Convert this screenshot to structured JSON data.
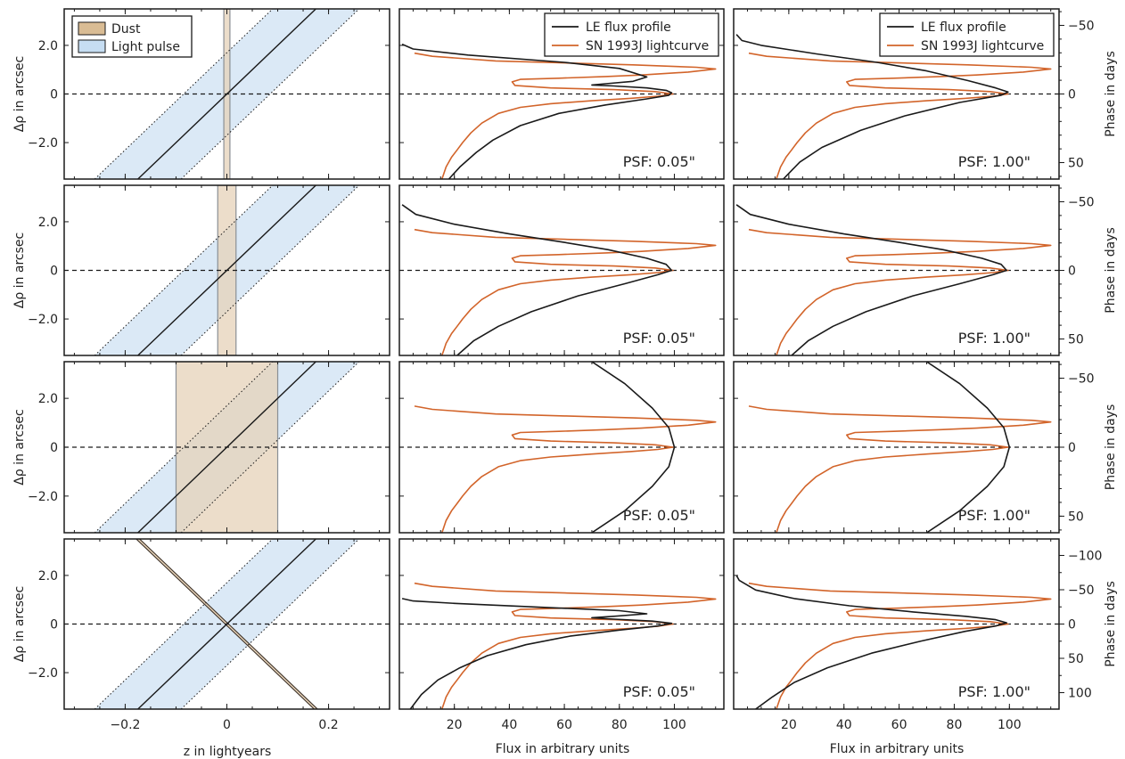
{
  "colors": {
    "dust_fill": "#e6d2b8",
    "dust_stroke": "#8a8f95",
    "pulse_fill": "#dbe9f6",
    "le_profile": "#1a1a1a",
    "lightcurve": "#d2642a",
    "axis": "#1a1a1a"
  },
  "labels": {
    "dy_left": "Δρ in arcsec",
    "phase_right": "Phase in days",
    "x_left": "z in lightyears",
    "x_mid": "Flux in arbitrary units",
    "x_right": "Flux in arbitrary units"
  },
  "legend_left": {
    "dust": "Dust",
    "light_pulse": "Light pulse"
  },
  "legend_right": {
    "le": "LE flux profile",
    "sn": "SN 1993J lightcurve"
  },
  "psf_labels": [
    "PSF: 0.05\"",
    "PSF: 1.00\""
  ],
  "chart_data": {
    "type": "line",
    "layout": "4 rows x 3 columns",
    "left_panels": {
      "xlabel": "z in lightyears",
      "ylabel": "Δρ in arcsec",
      "xlim": [
        -0.32,
        0.32
      ],
      "ylim": [
        -3.5,
        3.5
      ],
      "xticks": [
        -0.2,
        0,
        0.2
      ],
      "xtick_labels": [
        "−0.2",
        "0",
        "0.2"
      ],
      "yticks": [
        2.0,
        0,
        -2.0
      ],
      "ytick_labels": [
        "2.0",
        "0",
        "−2.0"
      ],
      "light_pulse": {
        "center_line": "Δρ = 20 z",
        "band_halfwidth_z": 0.085
      },
      "dust_layers": [
        {
          "row": 1,
          "z_min": -0.006,
          "z_max": 0.006,
          "orientation": "vertical"
        },
        {
          "row": 2,
          "z_min": -0.018,
          "z_max": 0.018,
          "orientation": "vertical"
        },
        {
          "row": 3,
          "z_min": -0.1,
          "z_max": 0.1,
          "orientation": "vertical"
        },
        {
          "row": 4,
          "line": "Δρ = −20 z",
          "orientation": "inclined"
        }
      ]
    },
    "flux_panels": {
      "xlabel": "Flux in arbitrary units",
      "xlim": [
        0,
        118
      ],
      "xticks": [
        20,
        40,
        60,
        80,
        100
      ],
      "xtick_labels": [
        "20",
        "40",
        "60",
        "80",
        "100"
      ],
      "ylim": [
        -3.5,
        3.5
      ],
      "phase_ticks_rows_1_3": [
        -50,
        0,
        50
      ],
      "phase_tick_labels_rows_1_3": [
        "−50",
        "0",
        "50"
      ],
      "phase_ticks_row_4": [
        -100,
        -50,
        0,
        50,
        100
      ],
      "phase_tick_labels_row_4": [
        "−100",
        "−50",
        "0",
        "50",
        "100"
      ],
      "series": [
        {
          "name": "SN 1993J lightcurve",
          "points": [
            [
              15.5,
              -3.5
            ],
            [
              17,
              -3.0
            ],
            [
              19,
              -2.6
            ],
            [
              21,
              -2.3
            ],
            [
              23,
              -2.0
            ],
            [
              26,
              -1.6
            ],
            [
              30,
              -1.2
            ],
            [
              36,
              -0.8
            ],
            [
              44,
              -0.55
            ],
            [
              55,
              -0.4
            ],
            [
              70,
              -0.28
            ],
            [
              84,
              -0.18
            ],
            [
              94,
              -0.09
            ],
            [
              99.5,
              0
            ],
            [
              93,
              0.1
            ],
            [
              78,
              0.18
            ],
            [
              55,
              0.25
            ],
            [
              42,
              0.35
            ],
            [
              41,
              0.5
            ],
            [
              44,
              0.6
            ],
            [
              58,
              0.65
            ],
            [
              75,
              0.72
            ],
            [
              88,
              0.78
            ],
            [
              105,
              0.9
            ],
            [
              115,
              1.03
            ],
            [
              108,
              1.1
            ],
            [
              85,
              1.2
            ],
            [
              60,
              1.28
            ],
            [
              35,
              1.36
            ],
            [
              12,
              1.55
            ],
            [
              5.5,
              1.68
            ]
          ]
        },
        {
          "name": "LE flux profile",
          "rows": [
            {
              "psf_005": [
                [
                  18,
                  -3.5
                ],
                [
                  22,
                  -3.0
                ],
                [
                  28,
                  -2.4
                ],
                [
                  34,
                  -1.9
                ],
                [
                  44,
                  -1.3
                ],
                [
                  58,
                  -0.8
                ],
                [
                  75,
                  -0.45
                ],
                [
                  90,
                  -0.2
                ],
                [
                  98,
                  -0.05
                ],
                [
                  99,
                  0.05
                ],
                [
                  97,
                  0.15
                ],
                [
                  90,
                  0.25
                ],
                [
                  78,
                  0.33
                ],
                [
                  70,
                  0.37
                ],
                [
                  75,
                  0.42
                ],
                [
                  85,
                  0.52
                ],
                [
                  90,
                  0.7
                ],
                [
                  80,
                  1.05
                ],
                [
                  60,
                  1.3
                ],
                [
                  25,
                  1.6
                ],
                [
                  5,
                  1.85
                ],
                [
                  1,
                  2.05
                ]
              ],
              "psf_100": [
                [
                  18,
                  -3.5
                ],
                [
                  24,
                  -2.8
                ],
                [
                  32,
                  -2.2
                ],
                [
                  46,
                  -1.5
                ],
                [
                  62,
                  -0.9
                ],
                [
                  82,
                  -0.35
                ],
                [
                  97,
                  -0.05
                ],
                [
                  99.5,
                  0.08
                ],
                [
                  95,
                  0.25
                ],
                [
                  85,
                  0.55
                ],
                [
                  70,
                  0.95
                ],
                [
                  52,
                  1.3
                ],
                [
                  30,
                  1.65
                ],
                [
                  10,
                  2.0
                ],
                [
                  3,
                  2.2
                ],
                [
                  1,
                  2.45
                ]
              ]
            },
            {
              "psf_005": [
                [
                  21,
                  -3.5
                ],
                [
                  27,
                  -2.9
                ],
                [
                  36,
                  -2.3
                ],
                [
                  48,
                  -1.7
                ],
                [
                  65,
                  -1.05
                ],
                [
                  82,
                  -0.55
                ],
                [
                  94,
                  -0.18
                ],
                [
                  99,
                  0
                ],
                [
                  97,
                  0.25
                ],
                [
                  90,
                  0.5
                ],
                [
                  76,
                  0.85
                ],
                [
                  60,
                  1.15
                ],
                [
                  40,
                  1.5
                ],
                [
                  20,
                  1.9
                ],
                [
                  6,
                  2.3
                ],
                [
                  1,
                  2.7
                ]
              ],
              "psf_100": [
                [
                  21,
                  -3.5
                ],
                [
                  27,
                  -2.9
                ],
                [
                  36,
                  -2.3
                ],
                [
                  48,
                  -1.7
                ],
                [
                  65,
                  -1.05
                ],
                [
                  82,
                  -0.55
                ],
                [
                  94,
                  -0.18
                ],
                [
                  99,
                  0
                ],
                [
                  97,
                  0.25
                ],
                [
                  90,
                  0.5
                ],
                [
                  76,
                  0.85
                ],
                [
                  60,
                  1.15
                ],
                [
                  40,
                  1.5
                ],
                [
                  20,
                  1.9
                ],
                [
                  6,
                  2.3
                ],
                [
                  1,
                  2.7
                ]
              ]
            },
            {
              "psf_005": [
                [
                  70,
                  -3.5
                ],
                [
                  82,
                  -2.6
                ],
                [
                  92,
                  -1.6
                ],
                [
                  98,
                  -0.8
                ],
                [
                  100,
                  0
                ],
                [
                  98,
                  0.8
                ],
                [
                  92,
                  1.6
                ],
                [
                  82,
                  2.6
                ],
                [
                  70,
                  3.5
                ]
              ],
              "psf_100": [
                [
                  70,
                  -3.5
                ],
                [
                  82,
                  -2.6
                ],
                [
                  92,
                  -1.6
                ],
                [
                  98,
                  -0.8
                ],
                [
                  100,
                  0
                ],
                [
                  98,
                  0.8
                ],
                [
                  92,
                  1.6
                ],
                [
                  82,
                  2.6
                ],
                [
                  70,
                  3.5
                ]
              ]
            },
            {
              "psf_005": [
                [
                  4,
                  -3.5
                ],
                [
                  8,
                  -2.9
                ],
                [
                  14,
                  -2.3
                ],
                [
                  22,
                  -1.8
                ],
                [
                  32,
                  -1.3
                ],
                [
                  46,
                  -0.85
                ],
                [
                  62,
                  -0.5
                ],
                [
                  80,
                  -0.25
                ],
                [
                  94,
                  -0.08
                ],
                [
                  99,
                  0.03
                ],
                [
                  92,
                  0.12
                ],
                [
                  78,
                  0.2
                ],
                [
                  70,
                  0.26
                ],
                [
                  78,
                  0.32
                ],
                [
                  90,
                  0.42
                ],
                [
                  80,
                  0.55
                ],
                [
                  50,
                  0.7
                ],
                [
                  20,
                  0.85
                ],
                [
                  5,
                  0.95
                ],
                [
                  1,
                  1.05
                ]
              ],
              "psf_100": [
                [
                  8,
                  -3.5
                ],
                [
                  14,
                  -3.0
                ],
                [
                  22,
                  -2.4
                ],
                [
                  34,
                  -1.8
                ],
                [
                  50,
                  -1.2
                ],
                [
                  68,
                  -0.7
                ],
                [
                  84,
                  -0.3
                ],
                [
                  95,
                  -0.08
                ],
                [
                  99,
                  0.05
                ],
                [
                  95,
                  0.18
                ],
                [
                  84,
                  0.32
                ],
                [
                  65,
                  0.5
                ],
                [
                  42,
                  0.75
                ],
                [
                  22,
                  1.05
                ],
                [
                  8,
                  1.4
                ],
                [
                  2,
                  1.8
                ],
                [
                  1,
                  2.0
                ]
              ]
            }
          ]
        }
      ]
    }
  }
}
